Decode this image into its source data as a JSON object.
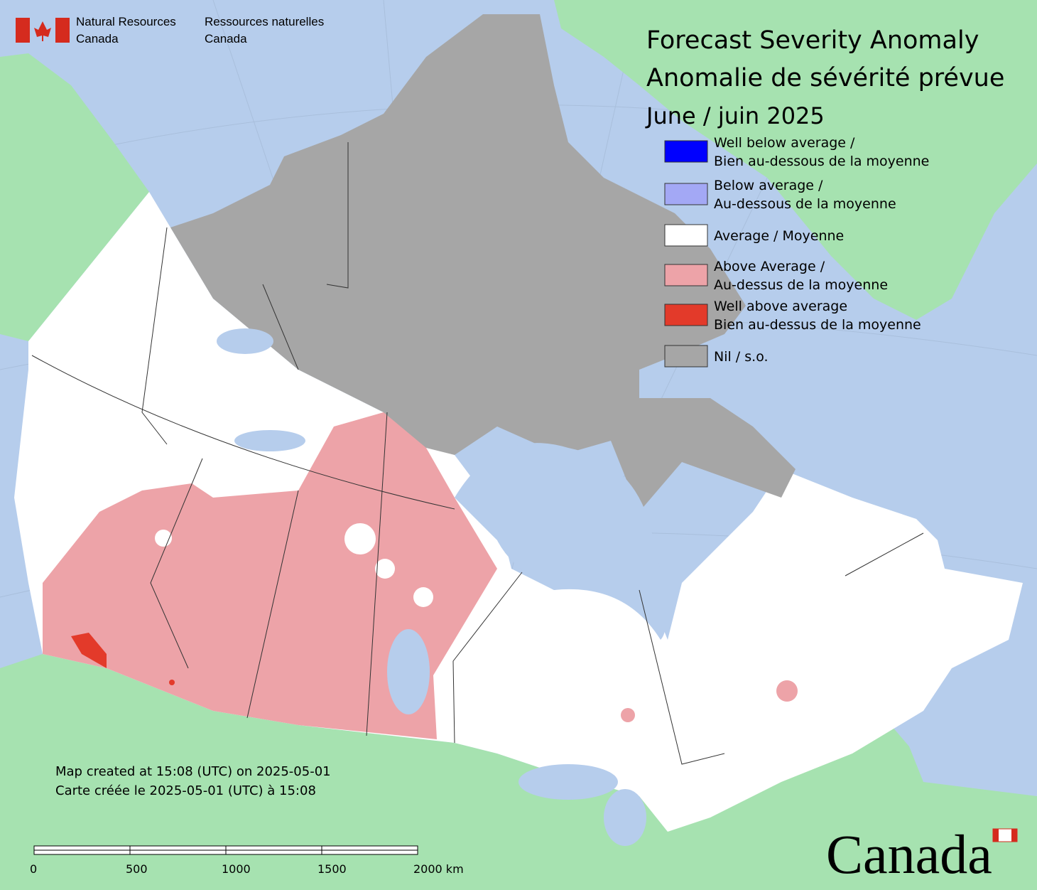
{
  "header": {
    "agency_en": [
      "Natural Resources",
      "Canada"
    ],
    "agency_fr": [
      "Ressources naturelles",
      "Canada"
    ]
  },
  "title": [
    "Forecast Severity Anomaly",
    "Anomalie de sévérité prévue",
    "June / juin 2025"
  ],
  "legend": [
    {
      "label": [
        "Well below average /",
        "Bien au-dessous de la moyenne"
      ],
      "color": "#0000ff"
    },
    {
      "label": [
        "Below average /",
        "Au-dessous de la moyenne"
      ],
      "color": "#a3a8f5"
    },
    {
      "label": [
        "Average / Moyenne"
      ],
      "color": "#ffffff"
    },
    {
      "label": [
        "Above Average /",
        "Au-dessus de la moyenne"
      ],
      "color": "#eda3a8"
    },
    {
      "label": [
        "Well above average",
        "Bien au-dessus de la moyenne"
      ],
      "color": "#e33a2a"
    },
    {
      "label": [
        "Nil / s.o."
      ],
      "color": "#a6a6a6"
    }
  ],
  "footer": [
    "Map created at 15:08 (UTC) on 2025-05-01",
    "Carte créée le 2025-05-01 (UTC) à 15:08"
  ],
  "scale_bar": [
    "0",
    "500",
    "1000",
    "1500",
    "2000 km"
  ],
  "wordmark": "Canada"
}
